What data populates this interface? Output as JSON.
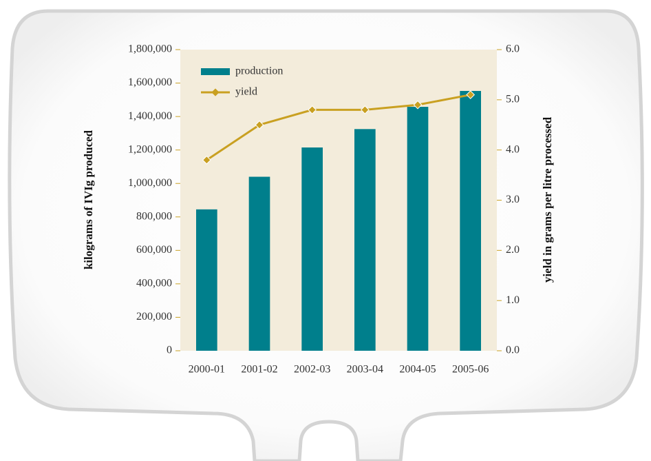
{
  "chart_data": {
    "type": "bar",
    "categories": [
      "2000-01",
      "2001-02",
      "2002-03",
      "2003-04",
      "2004-05",
      "2005-06"
    ],
    "y_label": "kilograms of IVIg produced",
    "y2_label": "yield in grams per litre processed",
    "series": [
      {
        "name": "production",
        "type": "bar",
        "color": "#007f8c",
        "values": [
          845000,
          1040000,
          1215000,
          1325000,
          1458000,
          1553000
        ]
      },
      {
        "name": "yield",
        "type": "line",
        "axis": "y2",
        "color": "#c9a021",
        "values": [
          3.8,
          4.5,
          4.8,
          4.8,
          4.9,
          5.1
        ]
      }
    ],
    "ylim": [
      0,
      1800000
    ],
    "yticks": [
      0,
      {
        "value": 200000,
        "label": "200,000"
      },
      {
        "value": 400000,
        "label": "400,000"
      },
      {
        "value": 600000,
        "label": "600,000"
      },
      {
        "value": 800000,
        "label": "800,000"
      },
      {
        "value": 1000000,
        "label": "1,000,000"
      },
      {
        "value": 1200000,
        "label": "1,200,000"
      },
      {
        "value": 1400000,
        "label": "1,400,000"
      },
      {
        "value": 1600000,
        "label": "1,600,000"
      },
      {
        "value": 1800000,
        "label": "1,800,000"
      }
    ],
    "y2lim": [
      0,
      6
    ],
    "y2ticks": [
      {
        "value": 0,
        "label": "0.0"
      },
      {
        "value": 1,
        "label": "1.0"
      },
      {
        "value": 2,
        "label": "2.0"
      },
      {
        "value": 3,
        "label": "3.0"
      },
      {
        "value": 4,
        "label": "4.0"
      },
      {
        "value": 5,
        "label": "5.0"
      },
      {
        "value": 6,
        "label": "6.0"
      }
    ],
    "legend": "upper-left",
    "plot_background": "#f3ecdb"
  }
}
